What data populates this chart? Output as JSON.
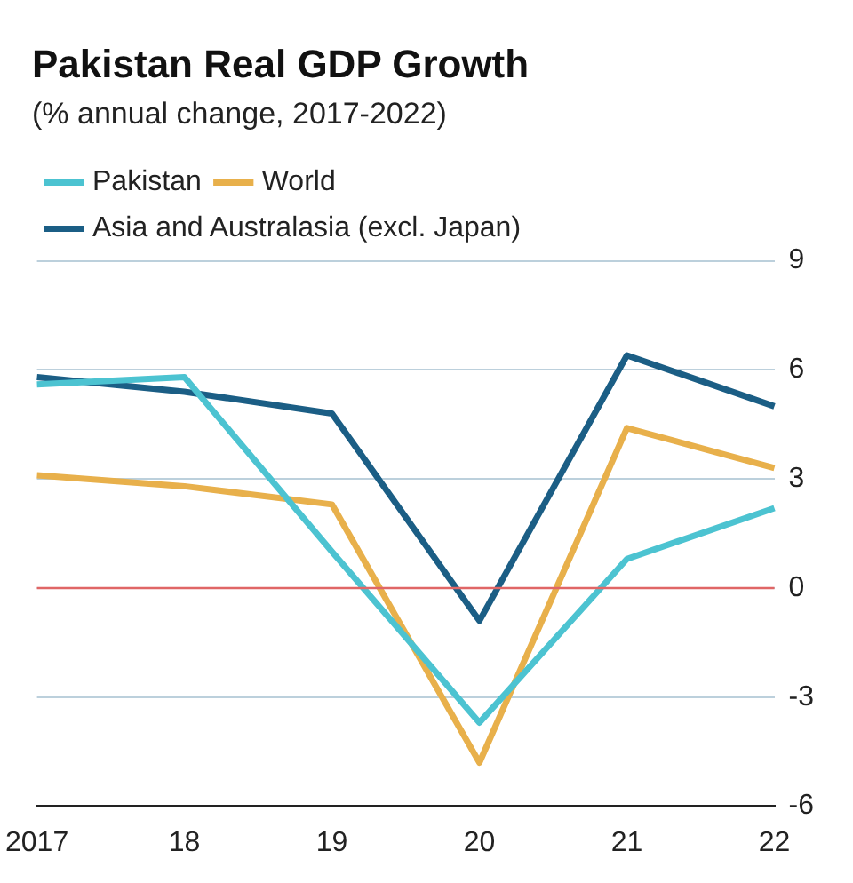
{
  "chart_data": {
    "type": "line",
    "title": "Pakistan Real GDP Growth",
    "subtitle": "(% annual change, 2017-2022)",
    "categories": [
      "2017",
      "18",
      "19",
      "20",
      "21",
      "22"
    ],
    "series": [
      {
        "name": "Pakistan",
        "color": "#4cc3d1",
        "values": [
          5.6,
          5.8,
          1.0,
          -3.7,
          0.8,
          2.2
        ]
      },
      {
        "name": "World",
        "color": "#e8b04b",
        "values": [
          3.1,
          2.8,
          2.3,
          -4.8,
          4.4,
          3.3
        ]
      },
      {
        "name": "Asia and Australasia (excl. Japan)",
        "color": "#1b5e85",
        "values": [
          5.8,
          5.4,
          4.8,
          -0.9,
          6.4,
          5.0
        ]
      }
    ],
    "ylim": [
      -6,
      9
    ],
    "yticks": [
      -6,
      -3,
      0,
      3,
      6,
      9
    ],
    "ref_lines": [
      {
        "axis": "y",
        "value": 0,
        "color": "#e06666"
      }
    ],
    "grid": "y",
    "legend": "top left",
    "marker": "none",
    "line_style": "solid"
  }
}
